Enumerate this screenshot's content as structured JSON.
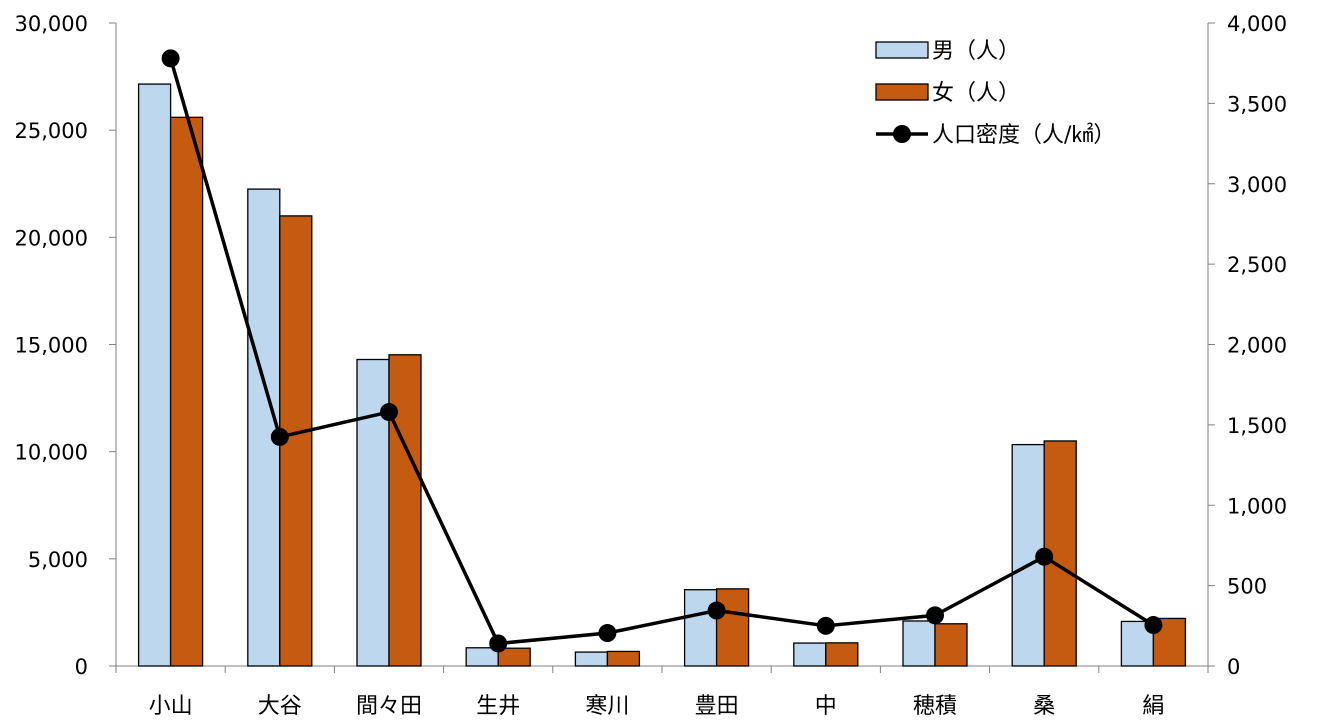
{
  "chart_data": {
    "type": "bar",
    "categories": [
      "小山",
      "大谷",
      "間々田",
      "生井",
      "寒川",
      "豊田",
      "中",
      "穂積",
      "桑",
      "絹"
    ],
    "series": [
      {
        "name": "男（人）",
        "type": "bar",
        "axis": "left",
        "color": "#bdd7ee",
        "values": [
          27150,
          22250,
          14300,
          850,
          650,
          3560,
          1070,
          2100,
          10330,
          2080
        ]
      },
      {
        "name": "女（人）",
        "type": "bar",
        "axis": "left",
        "color": "#c55a11",
        "values": [
          25600,
          21000,
          14520,
          830,
          680,
          3600,
          1080,
          1970,
          10500,
          2220
        ]
      },
      {
        "name": "人口密度（人/㎢）",
        "type": "line",
        "axis": "right",
        "color": "#000000",
        "values": [
          3780,
          1425,
          1580,
          140,
          205,
          345,
          250,
          315,
          680,
          255
        ]
      }
    ],
    "y_left": {
      "min": 0,
      "max": 30000,
      "step": 5000,
      "tick_labels": [
        "0",
        "5,000",
        "10,000",
        "15,000",
        "20,000",
        "25,000",
        "30,000"
      ]
    },
    "y_right": {
      "min": 0,
      "max": 4000,
      "step": 500,
      "tick_labels": [
        "0",
        "500",
        "1,000",
        "1,500",
        "2,000",
        "2,500",
        "3,000",
        "3,500",
        "4,000"
      ]
    },
    "legend_position": "top-right",
    "grid": false
  }
}
